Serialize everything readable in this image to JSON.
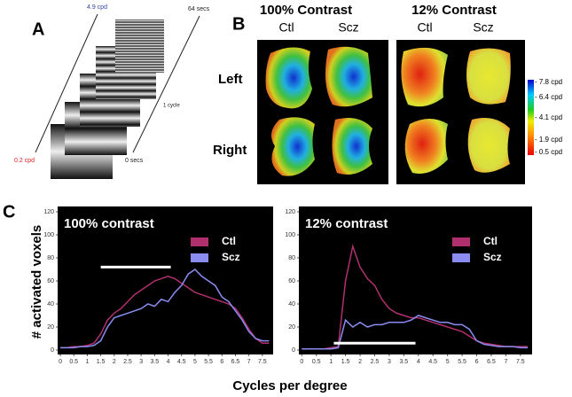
{
  "panel_a": {
    "label": "A",
    "top_freq": "4.9 cpd",
    "end_time": "64 secs",
    "cycle": "1 cycle",
    "bottom_freq": "0.2 cpd",
    "start_time": "0 secs"
  },
  "panel_b": {
    "label": "B",
    "groups": [
      {
        "title": "100% Contrast",
        "columns": [
          "Ctl",
          "Scz"
        ]
      },
      {
        "title": "12% Contrast",
        "columns": [
          "Ctl",
          "Scz"
        ]
      }
    ],
    "rows": [
      "Left",
      "Right"
    ],
    "colorbar": [
      "- 7.8 cpd",
      "- 6.4 cpd",
      "- 4.1 cpd",
      "- 1.9 cpd",
      "- 0.5 cpd"
    ]
  },
  "panel_c": {
    "label": "C",
    "y_label": "# activated voxels",
    "x_label": "Cycles per degree"
  },
  "chart_data": [
    {
      "type": "line",
      "title": "100% contrast",
      "x": [
        0,
        0.25,
        0.5,
        0.75,
        1,
        1.25,
        1.5,
        1.75,
        2,
        2.25,
        2.5,
        2.75,
        3,
        3.25,
        3.5,
        3.75,
        4,
        4.25,
        4.5,
        4.75,
        5,
        5.25,
        5.5,
        5.75,
        6,
        6.25,
        6.5,
        6.75,
        7,
        7.25,
        7.5,
        7.75
      ],
      "series": [
        {
          "name": "Ctl",
          "color": "#b0306e",
          "values": [
            2,
            2,
            3,
            3,
            4,
            6,
            14,
            26,
            32,
            36,
            42,
            48,
            52,
            56,
            60,
            62,
            64,
            62,
            58,
            54,
            50,
            48,
            46,
            44,
            42,
            40,
            36,
            28,
            18,
            10,
            6,
            6
          ]
        },
        {
          "name": "Scz",
          "color": "#8a8cf0",
          "values": [
            2,
            2,
            2,
            3,
            3,
            4,
            8,
            20,
            28,
            30,
            32,
            34,
            36,
            40,
            38,
            44,
            42,
            50,
            56,
            66,
            70,
            64,
            60,
            56,
            46,
            42,
            34,
            26,
            16,
            10,
            8,
            8
          ]
        }
      ],
      "highlight": {
        "x": [
          1.5,
          4.1
        ],
        "y": 72
      },
      "xlim": [
        -0.1,
        7.9
      ],
      "xticks": [
        0,
        0.5,
        1,
        1.5,
        2,
        2.5,
        3,
        3.5,
        4,
        4.5,
        5,
        5.5,
        6,
        6.5,
        7,
        7.5
      ],
      "ylim": [
        0,
        120
      ],
      "yticks": [
        0,
        20,
        40,
        60,
        80,
        100,
        120
      ]
    },
    {
      "type": "line",
      "title": "12% contrast",
      "x": [
        0,
        0.25,
        0.5,
        0.75,
        1,
        1.25,
        1.5,
        1.75,
        2,
        2.25,
        2.5,
        2.75,
        3,
        3.25,
        3.5,
        3.75,
        4,
        4.25,
        4.5,
        4.75,
        5,
        5.25,
        5.5,
        5.75,
        6,
        6.25,
        6.5,
        6.75,
        7,
        7.25,
        7.5,
        7.75
      ],
      "series": [
        {
          "name": "Ctl",
          "color": "#b0306e",
          "values": [
            1,
            1,
            1,
            1,
            2,
            3,
            60,
            90,
            72,
            62,
            56,
            44,
            36,
            32,
            30,
            28,
            28,
            26,
            24,
            22,
            20,
            18,
            16,
            12,
            8,
            6,
            5,
            4,
            3,
            3,
            3,
            3
          ]
        },
        {
          "name": "Scz",
          "color": "#8a8cf0",
          "values": [
            1,
            1,
            1,
            1,
            1,
            2,
            26,
            20,
            24,
            20,
            22,
            22,
            24,
            24,
            24,
            26,
            30,
            28,
            26,
            24,
            24,
            22,
            22,
            18,
            8,
            5,
            4,
            3,
            3,
            3,
            2,
            2
          ]
        }
      ],
      "highlight": {
        "x": [
          1.1,
          3.9
        ],
        "y": 6
      },
      "xlim": [
        -0.1,
        7.9
      ],
      "xticks": [
        0,
        0.5,
        1,
        1.5,
        2,
        2.5,
        3,
        3.5,
        4,
        4.5,
        5,
        5.5,
        6,
        6.5,
        7,
        7.5
      ],
      "ylim": [
        0,
        120
      ],
      "yticks": [
        0,
        20,
        40,
        60,
        80,
        100,
        120
      ]
    }
  ]
}
